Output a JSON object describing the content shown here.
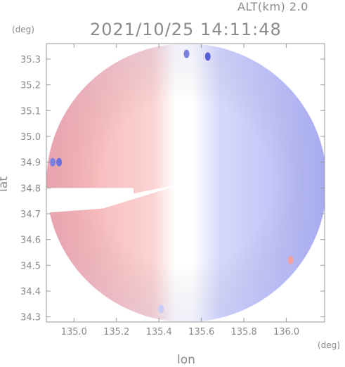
{
  "header": {
    "alt_label": "ALT(km) 2.0",
    "timestamp": "2021/10/25 14:11:48"
  },
  "chart_data": {
    "type": "heatmap",
    "title": "2021/10/25 14:11:48",
    "subtitle": "ALT(km) 2.0",
    "xlabel": "lon",
    "ylabel": "lat",
    "x_unit": "(deg)",
    "y_unit": "(deg)",
    "xlim": [
      134.87,
      136.18
    ],
    "ylim": [
      34.28,
      35.36
    ],
    "x_ticks": [
      "135.0",
      "135.2",
      "135.4",
      "135.6",
      "135.8",
      "136.0"
    ],
    "y_ticks": [
      "34.3",
      "34.4",
      "34.5",
      "34.6",
      "34.7",
      "34.8",
      "34.9",
      "35.0",
      "35.1",
      "35.2",
      "35.3"
    ],
    "radar_center": [
      135.53,
      34.82
    ],
    "radar_radius_lon": 0.66,
    "radar_radius_lat": 0.54,
    "blocked_sector": {
      "lon_from": 134.87,
      "lon_to": 135.28,
      "lat_min": 34.72,
      "lat_max": 34.8
    },
    "colors": {
      "approaching": "#f7b0b0",
      "receding": "#b0b4f5",
      "zero": "#ffffff",
      "frame": "#999999"
    },
    "grid": false,
    "legend": "none"
  }
}
